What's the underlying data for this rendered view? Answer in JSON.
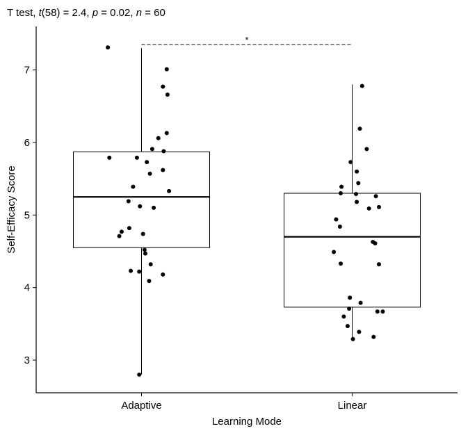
{
  "chart_data": {
    "type": "box",
    "title": {
      "test": "T test",
      "stat_symbol": "t",
      "stat_value": "(58) = 2.4",
      "p_symbol": "p",
      "p_value": " = 0.02",
      "n_symbol": "n",
      "n_value": " = 60"
    },
    "xlabel": "Learning Mode",
    "ylabel": "Self-Efficacy Score",
    "categories": [
      "Adaptive",
      "Linear"
    ],
    "ylim": [
      2.55,
      7.6
    ],
    "yticks": [
      3,
      4,
      5,
      6,
      7
    ],
    "significance": {
      "label": "*",
      "y": 7.35
    },
    "boxes": [
      {
        "category": "Adaptive",
        "whisker_low": 2.8,
        "q1": 4.55,
        "median": 5.25,
        "q3": 5.87,
        "whisker_high": 7.3
      },
      {
        "category": "Linear",
        "whisker_low": 3.3,
        "q1": 3.73,
        "median": 4.7,
        "q3": 5.3,
        "whisker_high": 6.8
      }
    ],
    "points": [
      {
        "category": "Adaptive",
        "values": [
          7.31,
          7.01,
          6.77,
          6.66,
          6.13,
          6.06,
          5.91,
          5.88,
          5.79,
          5.79,
          5.73,
          5.62,
          5.57,
          5.39,
          5.33,
          5.19,
          5.12,
          5.1,
          4.82,
          4.77,
          4.74,
          4.71,
          4.52,
          4.47,
          4.32,
          4.23,
          4.22,
          4.18,
          4.09,
          2.8
        ],
        "jitter": [
          -0.44,
          0.33,
          0.28,
          0.34,
          0.33,
          0.22,
          0.14,
          0.29,
          -0.42,
          -0.06,
          0.07,
          0.28,
          0.11,
          -0.11,
          0.36,
          -0.17,
          -0.02,
          0.16,
          -0.16,
          -0.26,
          0.02,
          -0.29,
          0.04,
          0.05,
          0.12,
          -0.14,
          -0.03,
          0.28,
          0.1,
          -0.03
        ]
      },
      {
        "category": "Linear",
        "values": [
          6.78,
          6.19,
          5.91,
          5.73,
          5.6,
          5.44,
          5.39,
          5.3,
          5.29,
          5.26,
          5.18,
          5.11,
          5.09,
          4.94,
          4.84,
          4.63,
          4.61,
          4.49,
          4.33,
          4.32,
          3.86,
          3.79,
          3.71,
          3.67,
          3.67,
          3.6,
          3.47,
          3.39,
          3.32,
          3.29
        ],
        "jitter": [
          0.13,
          0.1,
          0.19,
          -0.02,
          0.06,
          0.08,
          -0.14,
          -0.15,
          0.05,
          0.31,
          0.06,
          0.35,
          0.22,
          -0.21,
          -0.16,
          0.27,
          0.3,
          -0.24,
          -0.15,
          0.35,
          -0.03,
          0.11,
          -0.04,
          0.33,
          0.4,
          -0.11,
          -0.06,
          0.09,
          0.28,
          0.01
        ]
      }
    ]
  }
}
